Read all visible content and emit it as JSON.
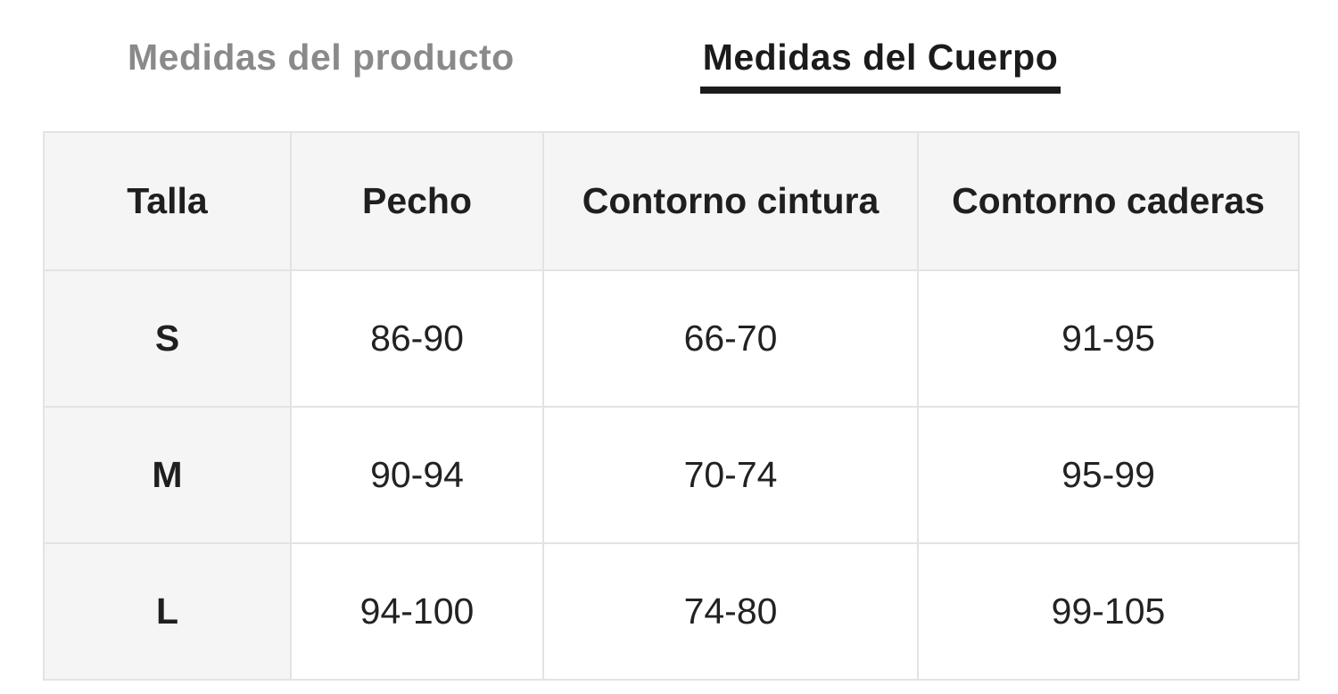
{
  "tabs": [
    {
      "label": "Medidas del producto",
      "active": false
    },
    {
      "label": "Medidas del Cuerpo",
      "active": true
    }
  ],
  "table": {
    "headers": [
      "Talla",
      "Pecho",
      "Contorno cintura",
      "Contorno caderas"
    ],
    "rows": [
      {
        "size": "S",
        "values": [
          "86-90",
          "66-70",
          "91-95"
        ]
      },
      {
        "size": "M",
        "values": [
          "90-94",
          "70-74",
          "95-99"
        ]
      },
      {
        "size": "L",
        "values": [
          "94-100",
          "74-80",
          "99-105"
        ]
      }
    ]
  },
  "colors": {
    "inactive_tab_text": "#8a8a8a",
    "active_tab_text": "#1b1b1b",
    "active_tab_underline": "#1b1b1b",
    "header_cell_background": "#f5f5f5",
    "size_column_background": "#f5f5f5",
    "cell_border": "#e3e3e3",
    "body_text": "#222222",
    "page_background": "#ffffff"
  }
}
